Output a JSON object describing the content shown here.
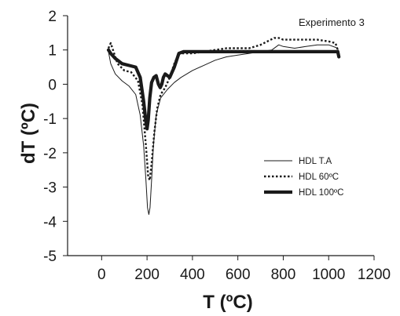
{
  "chart_data": {
    "type": "line",
    "title": "",
    "annotation": "Experimento 3",
    "xlabel": "T (ºC)",
    "ylabel": "dT (ºC)",
    "xlim": [
      -150,
      1200
    ],
    "ylim": [
      -5,
      2
    ],
    "xticks": [
      0,
      200,
      400,
      600,
      800,
      1000,
      1200
    ],
    "yticks": [
      2,
      1,
      0,
      -1,
      -2,
      -3,
      -4,
      -5
    ],
    "legend_position": "right",
    "series": [
      {
        "name": "HDL T.A",
        "line_style": "thin-solid",
        "color": "#1a1a1a",
        "x": [
          30,
          40,
          60,
          90,
          120,
          150,
          170,
          185,
          195,
          202,
          208,
          213,
          220,
          228,
          240,
          260,
          290,
          320,
          350,
          400,
          450,
          500,
          550,
          600,
          650,
          700,
          750,
          780,
          800,
          850,
          900,
          950,
          1000,
          1040,
          1045
        ],
        "y": [
          0.95,
          0.6,
          0.3,
          0.1,
          -0.05,
          -0.3,
          -0.9,
          -1.8,
          -2.8,
          -3.6,
          -3.8,
          -3.6,
          -2.8,
          -1.8,
          -0.9,
          -0.4,
          -0.15,
          0.05,
          0.2,
          0.4,
          0.55,
          0.7,
          0.8,
          0.85,
          0.9,
          0.95,
          1.0,
          1.15,
          1.1,
          1.05,
          1.1,
          1.15,
          1.15,
          1.05,
          0.8
        ]
      },
      {
        "name": "HDL 60ºC",
        "line_style": "dotted",
        "color": "#1a1a1a",
        "x": [
          30,
          40,
          50,
          70,
          100,
          130,
          160,
          180,
          195,
          205,
          212,
          220,
          232,
          245,
          260,
          280,
          300,
          320,
          340,
          360,
          400,
          450,
          500,
          550,
          600,
          650,
          700,
          730,
          760,
          780,
          800,
          850,
          900,
          950,
          1000,
          1030,
          1045
        ],
        "y": [
          1.05,
          1.2,
          1.0,
          0.6,
          0.4,
          0.35,
          0.1,
          -0.6,
          -1.8,
          -2.7,
          -2.8,
          -2.3,
          -1.4,
          -0.7,
          -0.3,
          -0.1,
          0.2,
          0.6,
          0.9,
          0.9,
          0.9,
          0.95,
          1.0,
          1.05,
          1.05,
          1.05,
          1.15,
          1.25,
          1.35,
          1.35,
          1.3,
          1.3,
          1.3,
          1.3,
          1.25,
          1.2,
          0.9
        ]
      },
      {
        "name": "HDL 100ºC",
        "line_style": "thick-solid",
        "color": "#1a1a1a",
        "x": [
          30,
          40,
          60,
          90,
          120,
          150,
          170,
          185,
          195,
          200,
          205,
          212,
          220,
          230,
          240,
          250,
          258,
          265,
          272,
          280,
          300,
          320,
          340,
          360,
          400,
          500,
          600,
          700,
          800,
          900,
          1000,
          1040,
          1045
        ],
        "y": [
          1.0,
          0.9,
          0.75,
          0.6,
          0.55,
          0.5,
          0.2,
          -0.5,
          -1.1,
          -1.3,
          -1.05,
          -0.4,
          0.05,
          0.2,
          0.25,
          0.0,
          -0.1,
          0.0,
          0.2,
          0.3,
          0.2,
          0.5,
          0.9,
          0.95,
          0.95,
          0.95,
          0.95,
          0.95,
          0.95,
          0.95,
          0.95,
          0.95,
          0.8
        ]
      }
    ]
  }
}
